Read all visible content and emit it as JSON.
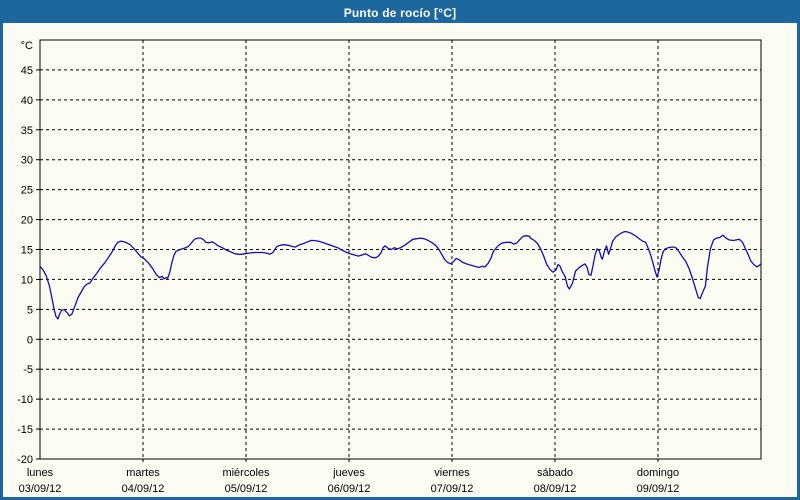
{
  "window": {
    "title": "Punto de rocío [°C]"
  },
  "colors": {
    "frame": "#1b679e",
    "titlebar": "#1b679e",
    "title_text": "#ffffff",
    "background": "#fcfcf3",
    "plot_border": "#000000",
    "grid": "#000000",
    "line": "#0f0fb4",
    "text": "#000000"
  },
  "chart_data": {
    "type": "line",
    "title": "Punto de rocío [°C]",
    "ylabel": "°C",
    "grid": "dashed",
    "legend": "none",
    "y_axis": {
      "unit": "°C",
      "min": -20,
      "max": 50,
      "tick_step": 5,
      "tick_labels": [
        45,
        40,
        35,
        30,
        25,
        20,
        15,
        10,
        5,
        0,
        -5,
        -10,
        -15,
        -20
      ]
    },
    "x_axis": {
      "unit": "days",
      "range": [
        0,
        7
      ],
      "days": [
        {
          "name": "lunes",
          "date": "03/09/12"
        },
        {
          "name": "martes",
          "date": "04/09/12"
        },
        {
          "name": "miércoles",
          "date": "05/09/12"
        },
        {
          "name": "jueves",
          "date": "06/09/12"
        },
        {
          "name": "viernes",
          "date": "07/09/12"
        },
        {
          "name": "sábado",
          "date": "08/09/12"
        },
        {
          "name": "domingo",
          "date": "09/09/12"
        }
      ]
    },
    "series": [
      {
        "name": "Punto de rocío",
        "color": "#0f0fb4",
        "points": [
          [
            0.0,
            12.2
          ],
          [
            0.03,
            11.6
          ],
          [
            0.06,
            10.6
          ],
          [
            0.09,
            9.0
          ],
          [
            0.12,
            6.5
          ],
          [
            0.14,
            4.8
          ],
          [
            0.155,
            3.8
          ],
          [
            0.175,
            3.4
          ],
          [
            0.19,
            4.2
          ],
          [
            0.21,
            4.9
          ],
          [
            0.24,
            4.9
          ],
          [
            0.265,
            4.4
          ],
          [
            0.285,
            3.9
          ],
          [
            0.31,
            4.2
          ],
          [
            0.34,
            5.6
          ],
          [
            0.37,
            7.0
          ],
          [
            0.4,
            7.9
          ],
          [
            0.43,
            8.8
          ],
          [
            0.455,
            9.2
          ],
          [
            0.485,
            9.4
          ],
          [
            0.515,
            10.2
          ],
          [
            0.55,
            11.0
          ],
          [
            0.59,
            12.0
          ],
          [
            0.63,
            12.8
          ],
          [
            0.665,
            13.7
          ],
          [
            0.7,
            14.6
          ],
          [
            0.73,
            15.6
          ],
          [
            0.755,
            16.2
          ],
          [
            0.785,
            16.4
          ],
          [
            0.815,
            16.3
          ],
          [
            0.845,
            16.1
          ],
          [
            0.875,
            15.8
          ],
          [
            0.91,
            15.2
          ],
          [
            0.95,
            14.4
          ],
          [
            0.98,
            13.8
          ],
          [
            1.01,
            13.5
          ],
          [
            1.05,
            12.8
          ],
          [
            1.09,
            11.9
          ],
          [
            1.13,
            10.8
          ],
          [
            1.16,
            10.3
          ],
          [
            1.185,
            10.5
          ],
          [
            1.205,
            10.1
          ],
          [
            1.225,
            10.3
          ],
          [
            1.24,
            10.2
          ],
          [
            1.26,
            11.2
          ],
          [
            1.28,
            12.8
          ],
          [
            1.3,
            14.0
          ],
          [
            1.32,
            14.7
          ],
          [
            1.36,
            15.0
          ],
          [
            1.4,
            15.2
          ],
          [
            1.44,
            15.5
          ],
          [
            1.47,
            16.1
          ],
          [
            1.5,
            16.7
          ],
          [
            1.53,
            16.9
          ],
          [
            1.56,
            16.9
          ],
          [
            1.59,
            16.6
          ],
          [
            1.61,
            16.2
          ],
          [
            1.64,
            16.1
          ],
          [
            1.67,
            16.3
          ],
          [
            1.7,
            16.0
          ],
          [
            1.73,
            15.6
          ],
          [
            1.77,
            15.3
          ],
          [
            1.81,
            14.9
          ],
          [
            1.85,
            14.6
          ],
          [
            1.89,
            14.3
          ],
          [
            1.93,
            14.2
          ],
          [
            1.96,
            14.2
          ],
          [
            1.99,
            14.3
          ],
          [
            2.03,
            14.4
          ],
          [
            2.08,
            14.5
          ],
          [
            2.12,
            14.5
          ],
          [
            2.16,
            14.5
          ],
          [
            2.2,
            14.4
          ],
          [
            2.23,
            14.2
          ],
          [
            2.26,
            14.5
          ],
          [
            2.28,
            15.0
          ],
          [
            2.3,
            15.5
          ],
          [
            2.33,
            15.7
          ],
          [
            2.37,
            15.8
          ],
          [
            2.41,
            15.7
          ],
          [
            2.45,
            15.5
          ],
          [
            2.48,
            15.4
          ],
          [
            2.52,
            15.8
          ],
          [
            2.56,
            16.0
          ],
          [
            2.6,
            16.3
          ],
          [
            2.63,
            16.5
          ],
          [
            2.66,
            16.5
          ],
          [
            2.7,
            16.4
          ],
          [
            2.74,
            16.2
          ],
          [
            2.79,
            15.9
          ],
          [
            2.84,
            15.6
          ],
          [
            2.89,
            15.3
          ],
          [
            2.94,
            14.8
          ],
          [
            2.98,
            14.5
          ],
          [
            3.01,
            14.3
          ],
          [
            3.05,
            14.1
          ],
          [
            3.09,
            13.9
          ],
          [
            3.13,
            14.1
          ],
          [
            3.16,
            14.3
          ],
          [
            3.19,
            14.0
          ],
          [
            3.22,
            13.7
          ],
          [
            3.25,
            13.6
          ],
          [
            3.28,
            13.8
          ],
          [
            3.31,
            14.4
          ],
          [
            3.33,
            15.3
          ],
          [
            3.35,
            15.6
          ],
          [
            3.38,
            15.2
          ],
          [
            3.41,
            15.0
          ],
          [
            3.44,
            15.3
          ],
          [
            3.47,
            15.1
          ],
          [
            3.5,
            15.3
          ],
          [
            3.54,
            15.7
          ],
          [
            3.58,
            16.2
          ],
          [
            3.62,
            16.7
          ],
          [
            3.66,
            16.8
          ],
          [
            3.69,
            16.9
          ],
          [
            3.73,
            16.8
          ],
          [
            3.77,
            16.5
          ],
          [
            3.81,
            16.1
          ],
          [
            3.84,
            15.7
          ],
          [
            3.87,
            15.1
          ],
          [
            3.9,
            14.2
          ],
          [
            3.93,
            13.3
          ],
          [
            3.96,
            12.8
          ],
          [
            3.99,
            12.6
          ],
          [
            4.02,
            13.1
          ],
          [
            4.04,
            13.5
          ],
          [
            4.07,
            13.3
          ],
          [
            4.1,
            12.9
          ],
          [
            4.14,
            12.6
          ],
          [
            4.18,
            12.4
          ],
          [
            4.22,
            12.2
          ],
          [
            4.26,
            12.0
          ],
          [
            4.29,
            12.2
          ],
          [
            4.32,
            12.1
          ],
          [
            4.35,
            12.7
          ],
          [
            4.38,
            13.6
          ],
          [
            4.4,
            14.6
          ],
          [
            4.43,
            15.3
          ],
          [
            4.46,
            15.8
          ],
          [
            4.49,
            16.1
          ],
          [
            4.53,
            16.2
          ],
          [
            4.57,
            16.2
          ],
          [
            4.6,
            15.9
          ],
          [
            4.63,
            16.1
          ],
          [
            4.66,
            16.7
          ],
          [
            4.69,
            17.2
          ],
          [
            4.72,
            17.3
          ],
          [
            4.75,
            17.2
          ],
          [
            4.77,
            16.8
          ],
          [
            4.8,
            16.5
          ],
          [
            4.83,
            16.0
          ],
          [
            4.86,
            15.1
          ],
          [
            4.89,
            13.9
          ],
          [
            4.92,
            12.5
          ],
          [
            4.95,
            11.7
          ],
          [
            4.98,
            11.2
          ],
          [
            5.01,
            11.6
          ],
          [
            5.03,
            12.5
          ],
          [
            5.05,
            12.2
          ],
          [
            5.07,
            11.3
          ],
          [
            5.1,
            10.4
          ],
          [
            5.12,
            8.9
          ],
          [
            5.14,
            8.4
          ],
          [
            5.17,
            9.4
          ],
          [
            5.2,
            11.4
          ],
          [
            5.23,
            11.9
          ],
          [
            5.26,
            12.3
          ],
          [
            5.29,
            12.6
          ],
          [
            5.31,
            12.1
          ],
          [
            5.33,
            10.8
          ],
          [
            5.35,
            10.7
          ],
          [
            5.37,
            12.4
          ],
          [
            5.39,
            14.2
          ],
          [
            5.41,
            15.1
          ],
          [
            5.43,
            14.8
          ],
          [
            5.45,
            13.6
          ],
          [
            5.46,
            13.4
          ],
          [
            5.48,
            14.7
          ],
          [
            5.5,
            15.6
          ],
          [
            5.52,
            14.2
          ],
          [
            5.54,
            15.2
          ],
          [
            5.56,
            16.4
          ],
          [
            5.59,
            17.1
          ],
          [
            5.62,
            17.5
          ],
          [
            5.65,
            17.8
          ],
          [
            5.68,
            18.0
          ],
          [
            5.71,
            17.9
          ],
          [
            5.74,
            17.7
          ],
          [
            5.78,
            17.3
          ],
          [
            5.81,
            16.9
          ],
          [
            5.85,
            16.4
          ],
          [
            5.88,
            16.2
          ],
          [
            5.91,
            15.0
          ],
          [
            5.93,
            14.0
          ],
          [
            5.95,
            12.8
          ],
          [
            5.97,
            11.5
          ],
          [
            5.99,
            10.4
          ],
          [
            6.01,
            11.5
          ],
          [
            6.03,
            13.4
          ],
          [
            6.05,
            14.6
          ],
          [
            6.07,
            15.1
          ],
          [
            6.1,
            15.3
          ],
          [
            6.13,
            15.4
          ],
          [
            6.16,
            15.4
          ],
          [
            6.18,
            15.2
          ],
          [
            6.21,
            14.5
          ],
          [
            6.24,
            13.7
          ],
          [
            6.27,
            13.0
          ],
          [
            6.3,
            11.9
          ],
          [
            6.33,
            10.4
          ],
          [
            6.36,
            8.7
          ],
          [
            6.39,
            7.0
          ],
          [
            6.41,
            6.8
          ],
          [
            6.43,
            7.7
          ],
          [
            6.46,
            8.9
          ],
          [
            6.48,
            12.0
          ],
          [
            6.51,
            15.2
          ],
          [
            6.54,
            16.6
          ],
          [
            6.57,
            16.9
          ],
          [
            6.6,
            17.0
          ],
          [
            6.63,
            17.4
          ],
          [
            6.66,
            16.9
          ],
          [
            6.69,
            16.6
          ],
          [
            6.73,
            16.5
          ],
          [
            6.76,
            16.6
          ],
          [
            6.79,
            16.7
          ],
          [
            6.82,
            16.2
          ],
          [
            6.85,
            15.1
          ],
          [
            6.88,
            14.0
          ],
          [
            6.9,
            13.1
          ],
          [
            6.93,
            12.5
          ],
          [
            6.96,
            12.1
          ],
          [
            6.98,
            12.3
          ],
          [
            7.0,
            12.6
          ]
        ]
      }
    ]
  }
}
